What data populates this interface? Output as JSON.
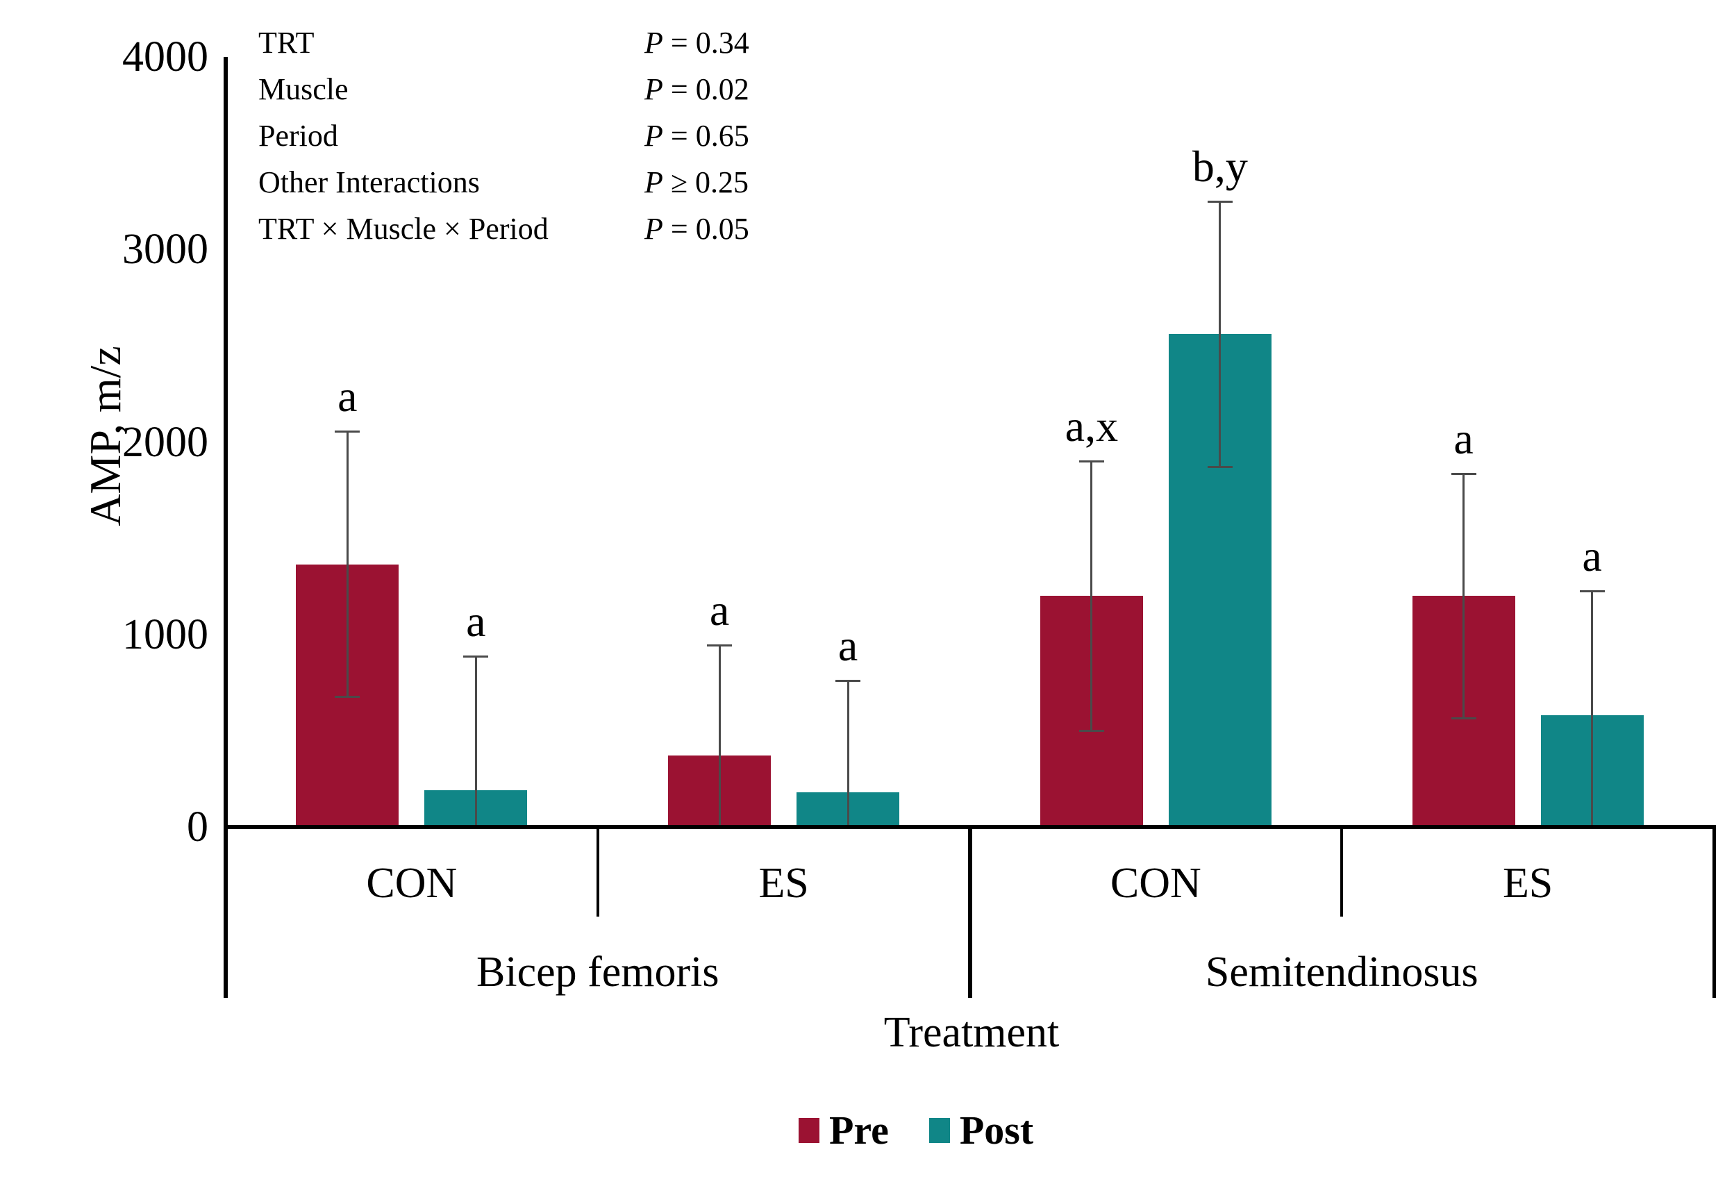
{
  "figure": {
    "background": "#ffffff"
  },
  "stats_box": {
    "p_symbol": "P",
    "rows": [
      {
        "label": "TRT",
        "relation": "=",
        "value": "0.34"
      },
      {
        "label": "Muscle",
        "relation": "=",
        "value": "0.02"
      },
      {
        "label": "Period",
        "relation": "=",
        "value": "0.65"
      },
      {
        "label": "Other Interactions",
        "relation": "≥",
        "value": "0.25"
      },
      {
        "label": "TRT × Muscle × Period",
        "relation": "=",
        "value": "0.05"
      }
    ]
  },
  "chart_data": {
    "type": "bar",
    "title": "",
    "ylabel": "AMP, m/z",
    "xlabel": "Treatment",
    "ylim": [
      0,
      4000
    ],
    "yticks": [
      0,
      1000,
      2000,
      3000,
      4000
    ],
    "grid": false,
    "legend": {
      "position": "bottom",
      "entries": [
        {
          "name": "Pre",
          "color": "#9B1232"
        },
        {
          "name": "Post",
          "color": "#108687"
        }
      ]
    },
    "muscles": [
      {
        "label": "Bicep femoris",
        "treatments": [
          {
            "label": "CON",
            "bars": [
              {
                "series": "Pre",
                "value": 1365,
                "error": 695,
                "annotation": "a"
              },
              {
                "series": "Post",
                "value": 190,
                "error": 700,
                "annotation": "a"
              }
            ]
          },
          {
            "label": "ES",
            "bars": [
              {
                "series": "Pre",
                "value": 370,
                "error": 580,
                "annotation": "a"
              },
              {
                "series": "Post",
                "value": 180,
                "error": 585,
                "annotation": "a"
              }
            ]
          }
        ]
      },
      {
        "label": "Semitendinosus",
        "treatments": [
          {
            "label": "CON",
            "bars": [
              {
                "series": "Pre",
                "value": 1200,
                "error": 705,
                "annotation": "a,x"
              },
              {
                "series": "Post",
                "value": 2560,
                "error": 695,
                "annotation": "b,y"
              }
            ]
          },
          {
            "label": "ES",
            "bars": [
              {
                "series": "Pre",
                "value": 1200,
                "error": 640,
                "annotation": "a"
              },
              {
                "series": "Post",
                "value": 580,
                "error": 650,
                "annotation": "a"
              }
            ]
          }
        ]
      }
    ]
  },
  "colors": {
    "pre": "#9B1232",
    "post": "#108687",
    "error_bar": "#4a4a4a",
    "axis": "#000000"
  }
}
